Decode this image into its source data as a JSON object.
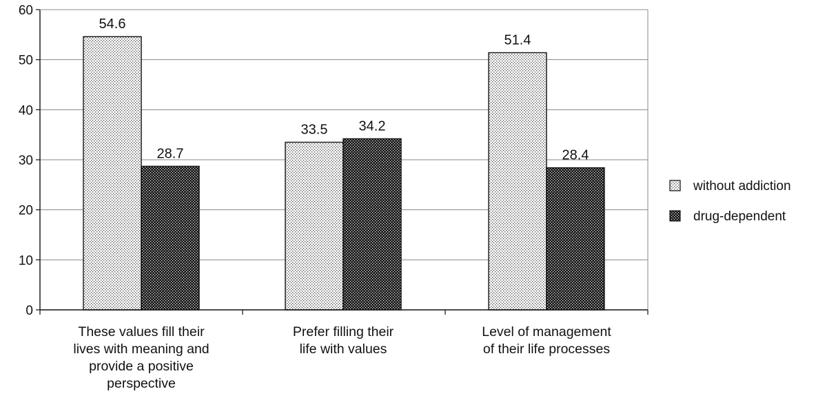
{
  "chart_data": {
    "type": "bar",
    "categories": [
      "These values fill their lives with meaning and provide a positive perspective",
      "Prefer filling their life with values",
      "Level of management of their life processes"
    ],
    "category_label_lines": [
      [
        "These values fill their",
        "lives with meaning and",
        "provide a positive",
        "perspective"
      ],
      [
        "Prefer filling their",
        "life with values"
      ],
      [
        "Level of management",
        "of their life processes"
      ]
    ],
    "series": [
      {
        "name": "without addiction",
        "values": [
          54.6,
          33.5,
          51.4
        ],
        "labels": [
          "54.6",
          "33.5",
          "51.4"
        ]
      },
      {
        "name": "drug-dependent",
        "values": [
          28.7,
          34.2,
          28.4
        ],
        "labels": [
          "28.7",
          "34.2",
          "28.4"
        ]
      }
    ],
    "yticks": [
      "0",
      "10",
      "20",
      "30",
      "40",
      "50",
      "60"
    ],
    "ylim": [
      0,
      60
    ],
    "grid": true,
    "legend_position": "right",
    "title": "",
    "xlabel": "",
    "ylabel": ""
  }
}
